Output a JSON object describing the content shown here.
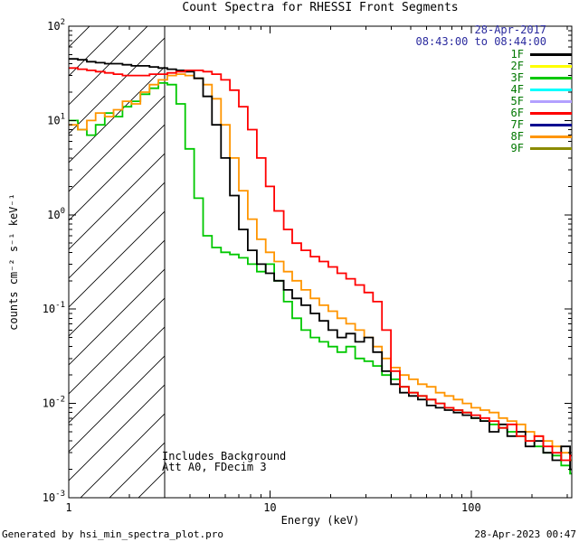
{
  "colors": {
    "date_text": "#2a2a9e",
    "legend_text": "#007700",
    "axis": "#000000",
    "background": "#ffffff"
  },
  "footer": {
    "generated_by": "Generated by hsi_min_spectra_plot.pro",
    "timestamp": "28-Apr-2023 00:47"
  },
  "chart_data": {
    "type": "line",
    "title": "Count Spectra for RHESSI Front Segments",
    "xlabel": "Energy (keV)",
    "ylabel": "counts cm⁻² s⁻¹ keV⁻¹",
    "xscale": "log",
    "yscale": "log",
    "xlim": [
      1,
      316
    ],
    "ylim": [
      0.001,
      100
    ],
    "x_major_ticks": [
      1,
      10,
      100
    ],
    "hatch_region_kev": [
      1,
      3
    ],
    "annotations": {
      "obs_date": "28-Apr-2017",
      "time_range": "08:43:00 to 08:44:00",
      "note1": "Includes Background",
      "note2": "Att A0, FDecim 3"
    },
    "legend": [
      {
        "label": "1F",
        "color": "#000000"
      },
      {
        "label": "2F",
        "color": "#ffff00"
      },
      {
        "label": "3F",
        "color": "#00c800"
      },
      {
        "label": "4F",
        "color": "#00ffff"
      },
      {
        "label": "5F",
        "color": "#b3a0ff"
      },
      {
        "label": "6F",
        "color": "#ff0000"
      },
      {
        "label": "7F",
        "color": "#000090"
      },
      {
        "label": "8F",
        "color": "#ff9500"
      },
      {
        "label": "9F",
        "color": "#8b8b00"
      }
    ],
    "x": [
      1.0,
      1.11,
      1.23,
      1.36,
      1.51,
      1.67,
      1.85,
      2.05,
      2.27,
      2.52,
      2.79,
      3.09,
      3.42,
      3.79,
      4.2,
      4.65,
      5.15,
      5.71,
      6.32,
      7.0,
      7.76,
      8.6,
      9.52,
      10.5,
      11.7,
      12.9,
      14.3,
      15.9,
      17.6,
      19.5,
      21.6,
      23.9,
      26.5,
      29.4,
      32.5,
      36.0,
      39.9,
      44.2,
      49.0,
      54.3,
      60.1,
      66.6,
      73.8,
      81.8,
      90.6,
      100,
      111,
      123,
      137,
      151,
      168,
      186,
      206,
      228,
      253,
      280,
      310
    ],
    "series": [
      {
        "name": "3F",
        "color": "#00c800",
        "values": [
          10,
          8,
          7,
          9,
          12,
          11,
          14,
          16,
          19,
          22,
          25,
          24,
          15,
          5,
          1.5,
          0.6,
          0.45,
          0.4,
          0.38,
          0.35,
          0.3,
          0.25,
          0.3,
          0.2,
          0.12,
          0.08,
          0.06,
          0.05,
          0.045,
          0.04,
          0.035,
          0.04,
          0.03,
          0.028,
          0.025,
          0.02,
          0.018,
          0.015,
          0.013,
          0.012,
          0.011,
          0.01,
          0.009,
          0.0085,
          0.008,
          0.007,
          0.0065,
          0.006,
          0.0055,
          0.005,
          0.0045,
          0.004,
          0.0035,
          0.003,
          0.0028,
          0.0022,
          0.0018
        ]
      },
      {
        "name": "8F",
        "color": "#ff9500",
        "values": [
          9,
          8,
          10,
          12,
          11,
          13,
          16,
          15,
          20,
          24,
          27,
          30,
          31,
          30,
          28,
          24,
          17,
          9,
          4,
          1.8,
          0.9,
          0.55,
          0.4,
          0.32,
          0.25,
          0.2,
          0.16,
          0.13,
          0.11,
          0.095,
          0.08,
          0.07,
          0.06,
          0.05,
          0.04,
          0.03,
          0.024,
          0.02,
          0.018,
          0.016,
          0.015,
          0.013,
          0.012,
          0.011,
          0.01,
          0.009,
          0.0085,
          0.008,
          0.007,
          0.0065,
          0.006,
          0.005,
          0.0045,
          0.004,
          0.0035,
          0.003,
          0.0025
        ]
      },
      {
        "name": "1F",
        "color": "#000000",
        "values": [
          45,
          44,
          42,
          41,
          40,
          40,
          39,
          38,
          38,
          37,
          36,
          35,
          34,
          33,
          28,
          18,
          9,
          4,
          1.6,
          0.7,
          0.42,
          0.3,
          0.24,
          0.2,
          0.16,
          0.13,
          0.11,
          0.09,
          0.075,
          0.06,
          0.05,
          0.055,
          0.045,
          0.05,
          0.035,
          0.022,
          0.016,
          0.013,
          0.012,
          0.011,
          0.0095,
          0.009,
          0.0085,
          0.008,
          0.0075,
          0.007,
          0.0065,
          0.005,
          0.006,
          0.0045,
          0.005,
          0.0035,
          0.004,
          0.003,
          0.0025,
          0.0035,
          0.002
        ]
      },
      {
        "name": "6F",
        "color": "#ff0000",
        "values": [
          36,
          35,
          34,
          33,
          32,
          31,
          30,
          30,
          30,
          31,
          31,
          32,
          33,
          34,
          34,
          33,
          31,
          27,
          21,
          14,
          8,
          4,
          2,
          1.1,
          0.7,
          0.5,
          0.42,
          0.36,
          0.32,
          0.28,
          0.24,
          0.21,
          0.18,
          0.15,
          0.12,
          0.06,
          0.022,
          0.015,
          0.013,
          0.012,
          0.011,
          0.01,
          0.009,
          0.0085,
          0.008,
          0.0075,
          0.007,
          0.0065,
          0.0055,
          0.006,
          0.0045,
          0.004,
          0.0045,
          0.0035,
          0.003,
          0.0025,
          0.0028
        ]
      }
    ]
  }
}
